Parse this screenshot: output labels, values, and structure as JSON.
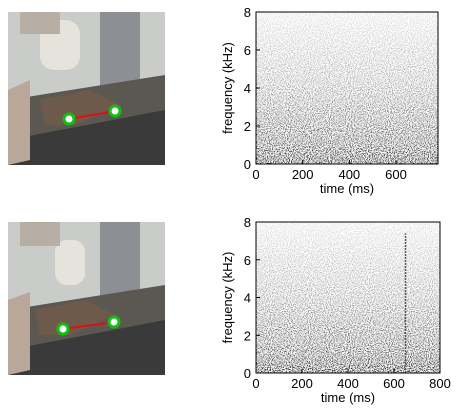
{
  "chart_data": [
    {
      "type": "spectrogram",
      "xlabel": "time (ms)",
      "ylabel": "frequency (kHz)",
      "xlim": [
        0,
        780
      ],
      "xticks": [
        0,
        200,
        400,
        600
      ],
      "ylim": [
        0,
        8
      ],
      "yticks": [
        0,
        2,
        4,
        6,
        8
      ]
    },
    {
      "type": "spectrogram",
      "xlabel": "time (ms)",
      "ylabel": "frequency (kHz)",
      "xlim": [
        0,
        800
      ],
      "xticks": [
        0,
        200,
        400,
        600,
        800
      ],
      "ylim": [
        0,
        8
      ],
      "yticks": [
        0,
        2,
        4,
        6,
        8
      ]
    }
  ]
}
